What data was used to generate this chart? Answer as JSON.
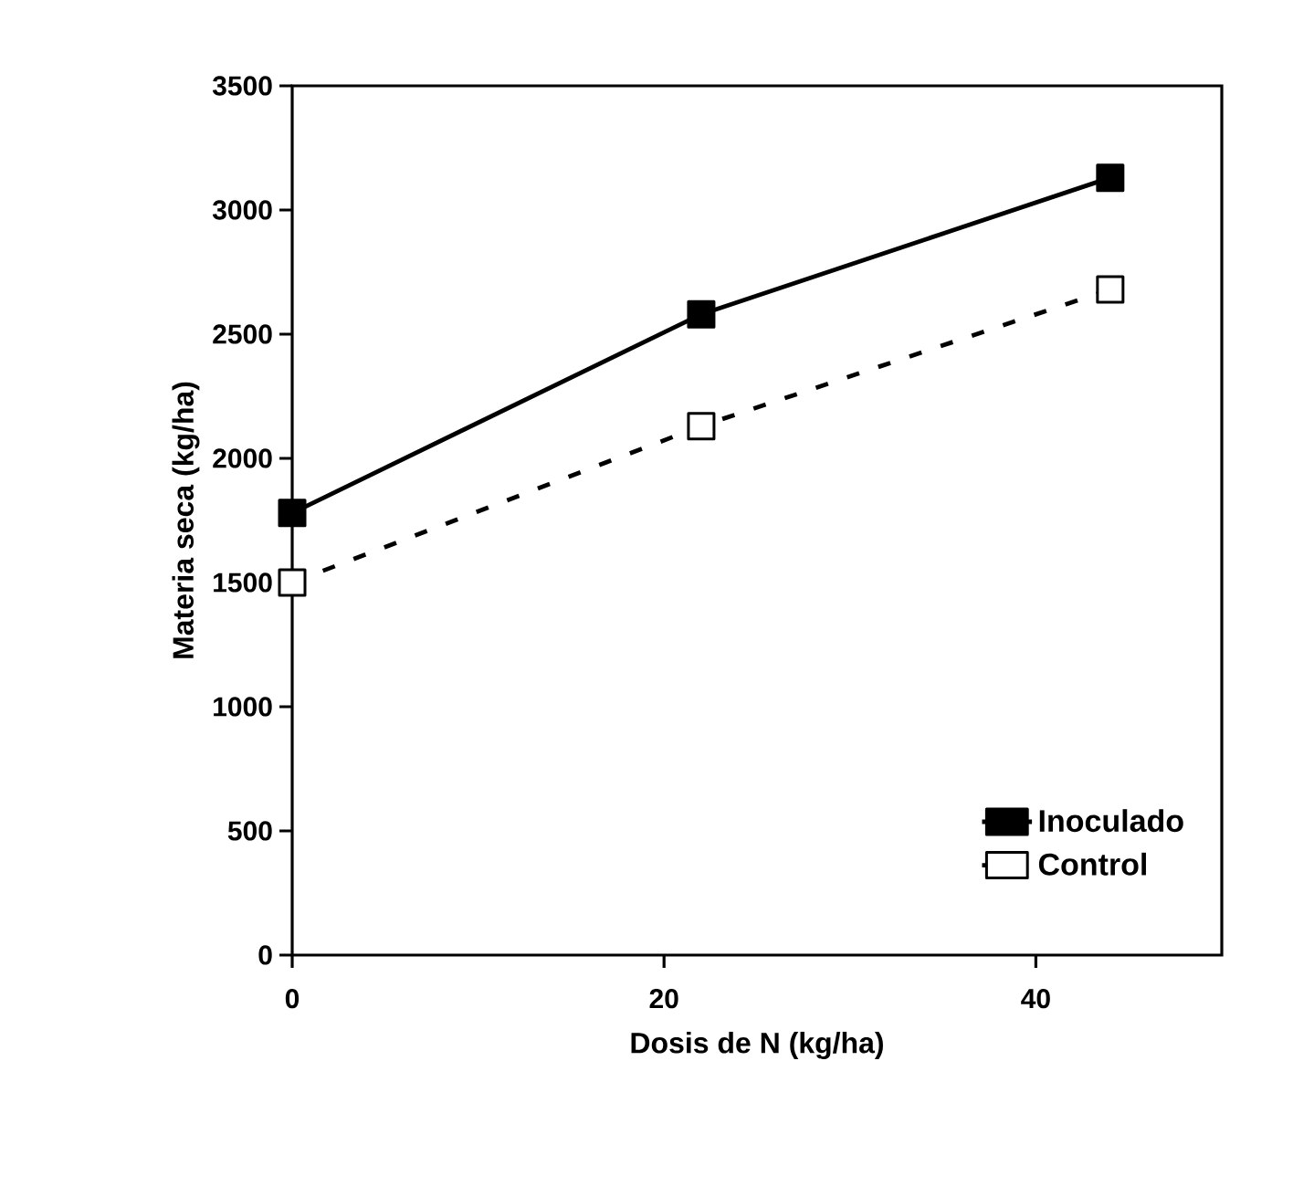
{
  "chart_data": {
    "type": "line",
    "xlabel": "Dosis de N (kg/ha)",
    "ylabel": "Materia seca (kg/ha)",
    "x": [
      0,
      22,
      44
    ],
    "xlim": [
      0,
      50
    ],
    "xticks": [
      0,
      20,
      40
    ],
    "ylim": [
      0,
      3500
    ],
    "yticks": [
      0,
      500,
      1000,
      1500,
      2000,
      2500,
      3000,
      3500
    ],
    "legend": "bottom right",
    "marker": "square",
    "series": [
      {
        "name": "Inoculado",
        "color": "#000000",
        "line_style": "solid",
        "values": [
          1780,
          2580,
          3130
        ]
      },
      {
        "name": "Control",
        "color": "#000000",
        "line_style": "dashed",
        "values": [
          1500,
          2130,
          2680
        ]
      }
    ]
  }
}
